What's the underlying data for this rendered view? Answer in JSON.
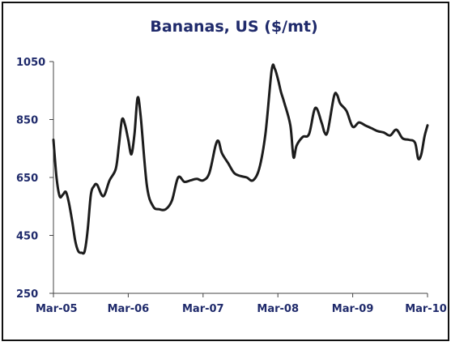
{
  "chart_data": {
    "type": "line",
    "title": "Bananas, US ($/mt)",
    "xlabel": "",
    "ylabel": "",
    "ylim": [
      250,
      1050
    ],
    "xlim": [
      "Mar-05",
      "Mar-10"
    ],
    "yticks": [
      "1050",
      "850",
      "650",
      "450",
      "250"
    ],
    "ytick_values": [
      1050,
      850,
      650,
      450,
      250
    ],
    "xticks": [
      "Mar-05",
      "Mar-06",
      "Mar-07",
      "Mar-08",
      "Mar-09",
      "Mar-10"
    ],
    "xtick_values": [
      0,
      12,
      24,
      36,
      48,
      60
    ],
    "grid": false,
    "legend": "none",
    "colors": {
      "line": "#1c1c1c",
      "title": "#1f2a6b",
      "ticks": "#1f2a6b",
      "axis": "#444444",
      "frame": "#111111"
    },
    "series": [
      {
        "x": [
          0,
          0.5,
          1,
          1.5,
          2,
          2.5,
          3,
          3.5,
          4,
          4.5,
          5,
          5.5,
          6,
          6.5,
          7,
          8,
          9,
          10,
          10.5,
          11,
          11.5,
          12,
          12.5,
          13,
          13.5,
          14,
          15,
          16,
          17,
          18,
          19,
          20,
          21,
          22,
          23,
          24,
          25,
          26,
          26.5,
          27,
          28,
          29,
          30,
          31,
          32,
          33,
          34,
          35,
          35.5,
          36,
          36.5,
          37,
          38,
          38.5,
          39,
          40,
          41,
          42,
          43,
          43.5,
          44,
          45,
          45.5,
          46,
          47,
          48,
          49,
          50,
          51,
          52,
          53,
          54,
          55,
          56,
          57,
          58,
          58.5,
          59,
          59.5,
          60
        ],
        "values": [
          780,
          650,
          585,
          590,
          600,
          560,
          500,
          430,
          395,
          390,
          395,
          470,
          590,
          620,
          625,
          585,
          640,
          680,
          760,
          850,
          830,
          780,
          730,
          800,
          925,
          860,
          620,
          550,
          540,
          540,
          570,
          650,
          635,
          640,
          645,
          640,
          665,
          760,
          775,
          735,
          700,
          665,
          655,
          650,
          640,
          680,
          800,
          1020,
          1025,
          990,
          945,
          910,
          830,
          720,
          760,
          790,
          800,
          890,
          840,
          805,
          810,
          930,
          935,
          905,
          880,
          825,
          840,
          830,
          820,
          810,
          805,
          795,
          815,
          785,
          780,
          770,
          715,
          730,
          790,
          830
        ]
      }
    ]
  }
}
